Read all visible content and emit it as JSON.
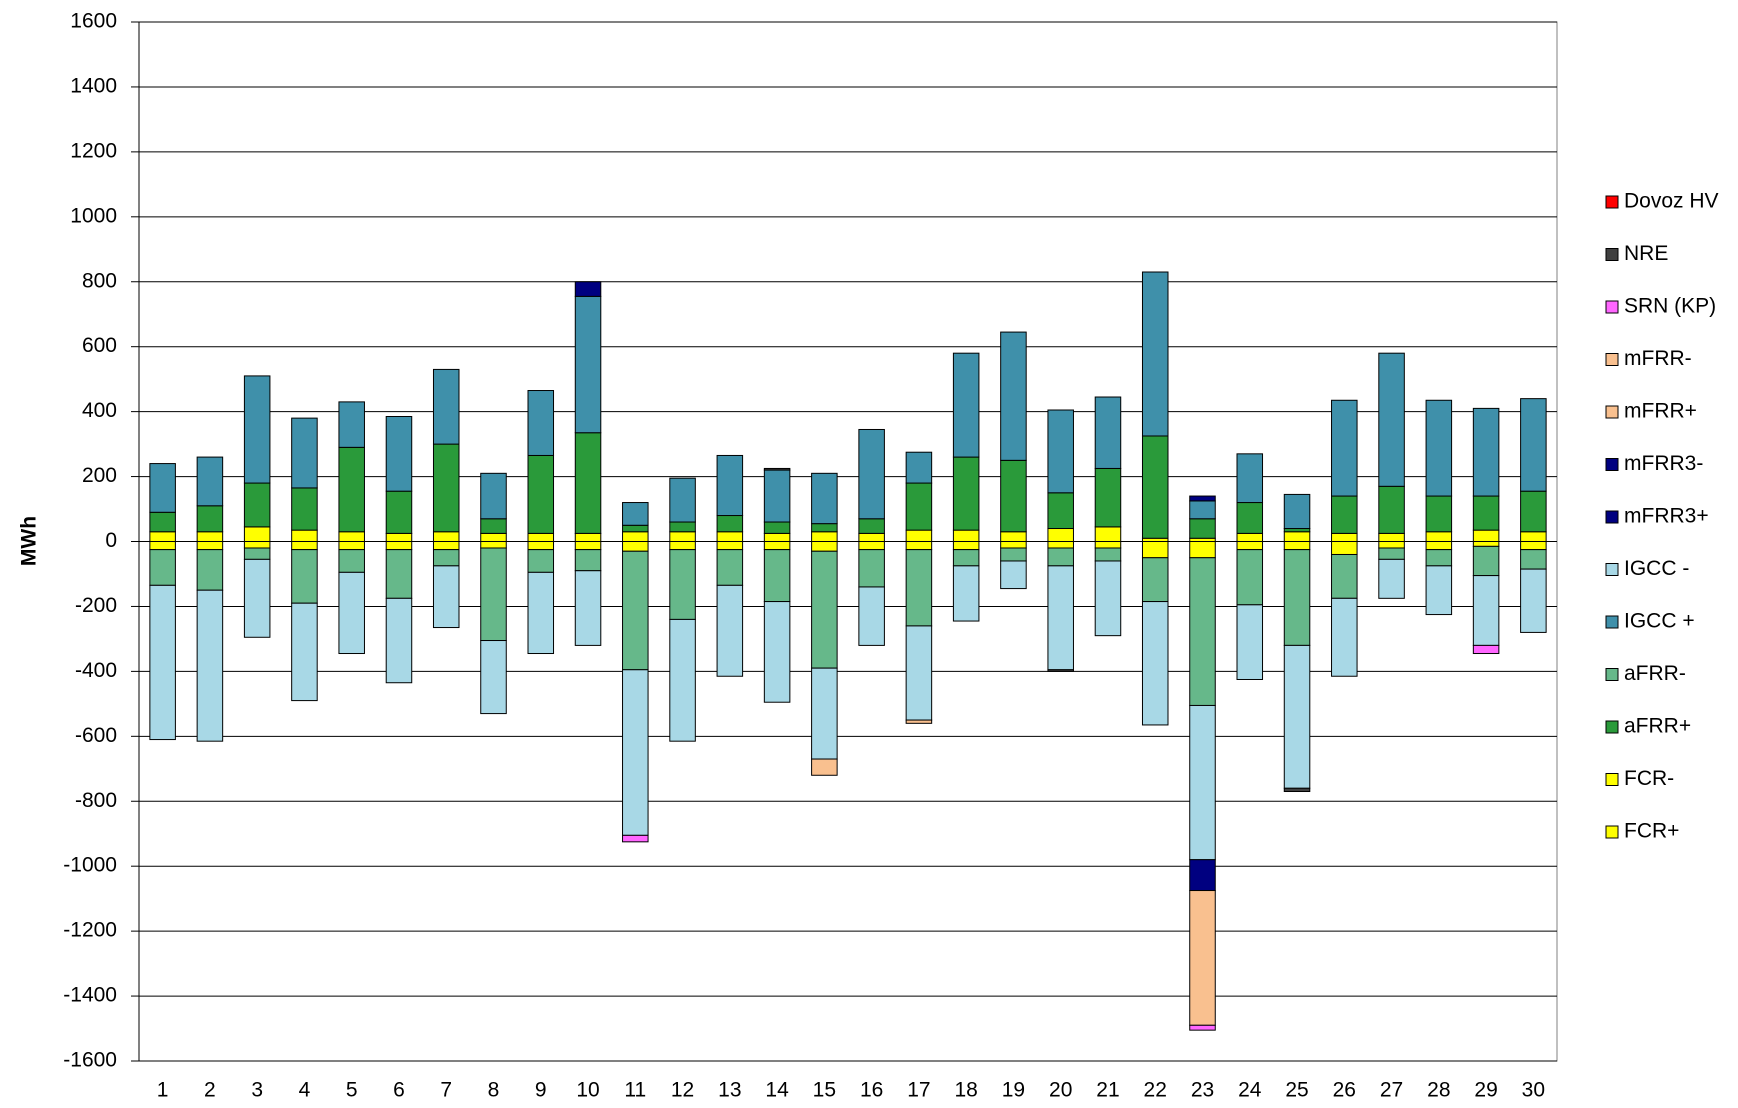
{
  "chart_data": {
    "type": "bar",
    "stacked": true,
    "y_label": "MWh",
    "categories": [
      "1",
      "2",
      "3",
      "4",
      "5",
      "6",
      "7",
      "8",
      "9",
      "10",
      "11",
      "12",
      "13",
      "14",
      "15",
      "16",
      "17",
      "18",
      "19",
      "20",
      "21",
      "22",
      "23",
      "24",
      "25",
      "26",
      "27",
      "28",
      "29",
      "30"
    ],
    "ylim": [
      -1600,
      1600
    ],
    "yticks": [
      -1600,
      -1400,
      -1200,
      -1000,
      -800,
      -600,
      -400,
      -200,
      0,
      200,
      400,
      600,
      800,
      1000,
      1200,
      1400,
      1600
    ],
    "grid": true,
    "series": [
      {
        "name": "FCR+",
        "color": "#ffff00",
        "values": [
          30,
          30,
          45,
          35,
          30,
          25,
          30,
          25,
          25,
          25,
          30,
          30,
          30,
          25,
          30,
          25,
          35,
          35,
          30,
          40,
          45,
          10,
          10,
          25,
          30,
          25,
          25,
          30,
          35,
          30
        ]
      },
      {
        "name": "FCR-",
        "color": "#ffff00",
        "values": [
          -25,
          -25,
          -20,
          -25,
          -25,
          -25,
          -25,
          -20,
          -25,
          -25,
          -30,
          -25,
          -25,
          -25,
          -30,
          -25,
          -25,
          -25,
          -20,
          -20,
          -20,
          -50,
          -50,
          -25,
          -25,
          -40,
          -20,
          -25,
          -15,
          -25
        ]
      },
      {
        "name": "aFRR+",
        "color": "#2a9a3a",
        "values": [
          60,
          80,
          135,
          130,
          260,
          130,
          270,
          45,
          240,
          310,
          20,
          30,
          50,
          35,
          25,
          45,
          145,
          225,
          220,
          110,
          180,
          315,
          60,
          95,
          10,
          115,
          145,
          110,
          105,
          125
        ]
      },
      {
        "name": "aFRR-",
        "color": "#66b88a",
        "values": [
          -110,
          -125,
          -35,
          -165,
          -70,
          -150,
          -50,
          -285,
          -70,
          -65,
          -365,
          -215,
          -110,
          -160,
          -360,
          -115,
          -235,
          -50,
          -40,
          -55,
          -40,
          -135,
          -455,
          -170,
          -295,
          -135,
          -35,
          -50,
          -90,
          -60
        ]
      },
      {
        "name": "IGCC +",
        "color": "#3f90aa",
        "values": [
          150,
          150,
          330,
          215,
          140,
          230,
          230,
          140,
          200,
          420,
          70,
          135,
          185,
          160,
          155,
          275,
          95,
          320,
          395,
          255,
          220,
          505,
          55,
          150,
          105,
          295,
          410,
          295,
          270,
          285
        ]
      },
      {
        "name": "IGCC -",
        "color": "#a8d8e6",
        "values": [
          -475,
          -465,
          -240,
          -300,
          -250,
          -260,
          -190,
          -225,
          -250,
          -230,
          -510,
          -375,
          -280,
          -310,
          -280,
          -180,
          -290,
          -170,
          -85,
          -320,
          -230,
          -380,
          -475,
          -230,
          -440,
          -240,
          -120,
          -150,
          -215,
          -195
        ]
      },
      {
        "name": "mFRR3+",
        "color": "#000080",
        "values": [
          0,
          0,
          0,
          0,
          0,
          0,
          0,
          0,
          0,
          45,
          0,
          0,
          0,
          0,
          0,
          0,
          0,
          0,
          0,
          0,
          0,
          0,
          15,
          0,
          0,
          0,
          0,
          0,
          0,
          0
        ]
      },
      {
        "name": "mFRR3-",
        "color": "#000080",
        "values": [
          0,
          0,
          0,
          0,
          0,
          0,
          0,
          0,
          0,
          0,
          0,
          0,
          0,
          0,
          0,
          0,
          0,
          0,
          0,
          0,
          0,
          0,
          -95,
          0,
          0,
          0,
          0,
          0,
          0,
          0
        ]
      },
      {
        "name": "mFRR+",
        "color": "#f9c08f",
        "values": [
          0,
          0,
          0,
          0,
          0,
          0,
          0,
          0,
          0,
          0,
          0,
          0,
          0,
          0,
          0,
          0,
          0,
          0,
          0,
          0,
          0,
          0,
          0,
          0,
          0,
          0,
          0,
          0,
          0,
          0
        ]
      },
      {
        "name": "mFRR-",
        "color": "#f9c08f",
        "values": [
          0,
          0,
          0,
          0,
          0,
          0,
          0,
          0,
          0,
          0,
          0,
          0,
          0,
          0,
          -50,
          0,
          -10,
          0,
          0,
          0,
          0,
          0,
          -415,
          0,
          0,
          0,
          0,
          0,
          0,
          0
        ]
      },
      {
        "name": "SRN (KP)",
        "color": "#ff66ff",
        "values": [
          0,
          0,
          0,
          0,
          0,
          0,
          0,
          0,
          0,
          0,
          -20,
          0,
          0,
          0,
          0,
          0,
          0,
          0,
          0,
          0,
          0,
          0,
          -15,
          0,
          0,
          0,
          0,
          0,
          -25,
          0
        ]
      },
      {
        "name": "NRE",
        "color": "#404040",
        "values": [
          0,
          0,
          0,
          0,
          0,
          0,
          0,
          0,
          0,
          0,
          0,
          0,
          0,
          5,
          0,
          0,
          0,
          0,
          0,
          -5,
          0,
          0,
          0,
          0,
          -10,
          0,
          0,
          0,
          0,
          0
        ]
      },
      {
        "name": "Dovoz HV",
        "color": "#ff0000",
        "values": [
          0,
          0,
          0,
          0,
          0,
          0,
          0,
          0,
          0,
          0,
          0,
          0,
          0,
          0,
          0,
          0,
          0,
          0,
          0,
          0,
          0,
          0,
          0,
          0,
          0,
          0,
          0,
          0,
          0,
          0
        ]
      }
    ]
  }
}
